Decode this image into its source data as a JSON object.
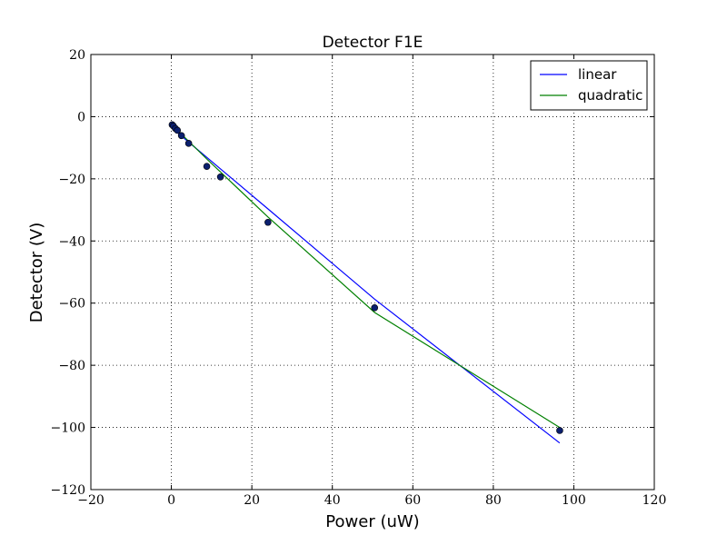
{
  "chart_data": {
    "type": "line",
    "title": "Detector F1E",
    "xlabel": "Power (uW)",
    "ylabel": "Detector (V)",
    "xlim": [
      -20,
      120
    ],
    "ylim": [
      -120,
      20
    ],
    "x_ticks": [
      -20,
      0,
      20,
      40,
      60,
      80,
      100,
      120
    ],
    "y_ticks": [
      -120,
      -100,
      -80,
      -60,
      -40,
      -20,
      0,
      20
    ],
    "x_tick_labels": [
      "−20",
      "0",
      "20",
      "40",
      "60",
      "80",
      "100",
      "120"
    ],
    "y_tick_labels": [
      "−120",
      "−100",
      "−80",
      "−60",
      "−40",
      "−20",
      "0",
      "20"
    ],
    "grid": true,
    "legend_position": "top-right",
    "points": {
      "x": [
        0.2,
        0.5,
        1.0,
        1.5,
        2.5,
        4.3,
        8.8,
        12.2,
        24.0,
        50.5,
        96.5
      ],
      "y": [
        -2.6,
        -3.0,
        -3.8,
        -4.4,
        -6.1,
        -8.6,
        -16.0,
        -19.4,
        -34.0,
        -61.5,
        -101.0
      ],
      "color": "#0b1f6e"
    },
    "series": [
      {
        "name": "linear",
        "color": "#0000ff",
        "x": [
          0.2,
          0.5,
          1.0,
          1.5,
          2.5,
          4.3,
          8.8,
          12.2,
          24.0,
          50.5,
          96.5
        ],
        "y": [
          -3.6,
          -4.0,
          -4.6,
          -5.1,
          -6.2,
          -8.2,
          -13.1,
          -16.8,
          -29.7,
          -58.7,
          -105.0
        ]
      },
      {
        "name": "quadratic",
        "color": "#008000",
        "x": [
          0.2,
          0.5,
          1.0,
          1.5,
          2.5,
          4.3,
          8.8,
          12.2,
          24.0,
          50.5,
          96.5
        ],
        "y": [
          -2.7,
          -3.1,
          -3.7,
          -4.3,
          -5.6,
          -7.9,
          -13.6,
          -17.8,
          -32.3,
          -63.0,
          -100.0
        ]
      }
    ]
  }
}
